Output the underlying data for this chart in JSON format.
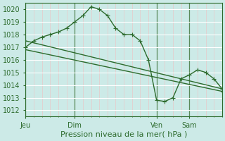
{
  "title": "Pression niveau de la mer( hPa )",
  "bg_color": "#cceae7",
  "line_color": "#2d6b2d",
  "ylim": [
    1011.5,
    1020.5
  ],
  "yticks": [
    1012,
    1013,
    1014,
    1015,
    1016,
    1017,
    1018,
    1019,
    1020
  ],
  "xlim": [
    0,
    144
  ],
  "day_positions": [
    0,
    36,
    96,
    120
  ],
  "day_labels": [
    "Jeu",
    "Dim",
    "Ven",
    "Sam"
  ],
  "minor_xticks_step": 6,
  "series1_x": [
    0,
    6,
    12,
    18,
    24,
    30,
    36,
    42,
    48,
    54,
    60,
    66,
    72,
    78,
    84,
    90,
    96,
    102,
    108,
    114,
    120,
    126,
    132,
    138,
    144
  ],
  "series1_y": [
    1017.0,
    1017.5,
    1017.8,
    1018.0,
    1018.2,
    1018.5,
    1019.0,
    1019.5,
    1020.2,
    1020.0,
    1019.5,
    1018.5,
    1018.0,
    1018.0,
    1017.5,
    1016.0,
    1012.8,
    1012.7,
    1013.0,
    1014.5,
    1014.8,
    1015.2,
    1015.0,
    1014.5,
    1013.7
  ],
  "series2_x": [
    0,
    144
  ],
  "series2_y": [
    1017.5,
    1013.7
  ],
  "series3_x": [
    0,
    144
  ],
  "series3_y": [
    1016.8,
    1013.5
  ],
  "grid_minor_color": "#e8c8c8",
  "grid_major_color": "#ffffff",
  "grid_day_color": "#5a8a5a",
  "tick_fontsize": 7,
  "label_fontsize": 8
}
